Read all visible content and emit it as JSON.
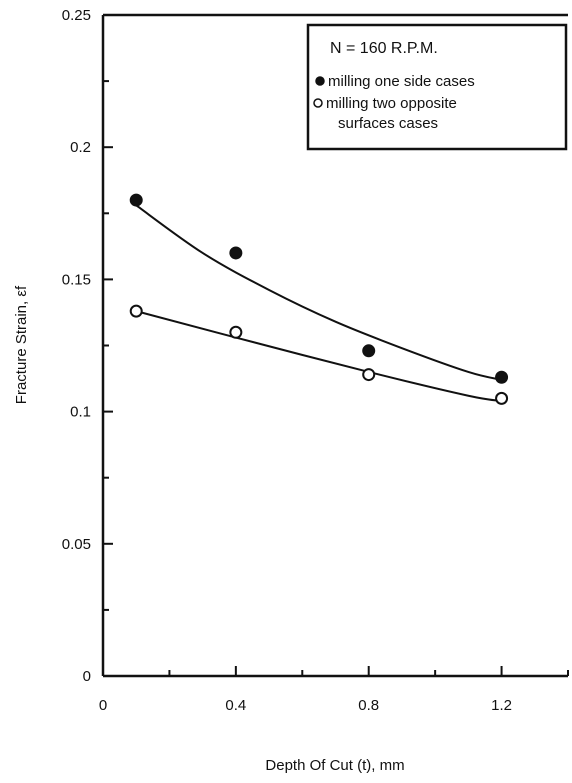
{
  "chart_data": {
    "type": "scatter",
    "title": "",
    "xlabel": "Depth Of Cut (t), mm",
    "ylabel": "Fracture Strain, εf",
    "xlim": [
      0,
      1.4
    ],
    "ylim": [
      0,
      0.25
    ],
    "x_ticks": [
      0,
      0.4,
      0.8,
      1.2
    ],
    "x_tick_labels": [
      "0",
      "0.4",
      "0.8",
      "1.2"
    ],
    "y_ticks": [
      0,
      0.05,
      0.1,
      0.15,
      0.2,
      0.25
    ],
    "y_tick_labels": [
      "0",
      "0.05",
      "0.1",
      "0.15",
      "0.2",
      "0.25"
    ],
    "grid": false,
    "legend_position": "top-right",
    "legend_title": "N = 160 R.P.M.",
    "series": [
      {
        "name": "milling one side cases",
        "marker": "filled-circle",
        "x": [
          0.1,
          0.4,
          0.8,
          1.2
        ],
        "y": [
          0.18,
          0.16,
          0.123,
          0.113
        ],
        "fit_x": [
          0.1,
          0.3,
          0.5,
          0.7,
          0.9,
          1.1,
          1.2
        ],
        "fit_y": [
          0.178,
          0.16,
          0.146,
          0.134,
          0.124,
          0.115,
          0.112
        ]
      },
      {
        "name": "milling two opposite surfaces cases",
        "marker": "open-circle",
        "x": [
          0.1,
          0.4,
          0.8,
          1.2
        ],
        "y": [
          0.138,
          0.13,
          0.114,
          0.105
        ],
        "fit_x": [
          0.1,
          0.4,
          0.8,
          1.1,
          1.2
        ],
        "fit_y": [
          0.138,
          0.128,
          0.115,
          0.106,
          0.104
        ]
      }
    ],
    "colors": {
      "axis": "#111111",
      "line": "#111111",
      "background": "#ffffff"
    }
  }
}
